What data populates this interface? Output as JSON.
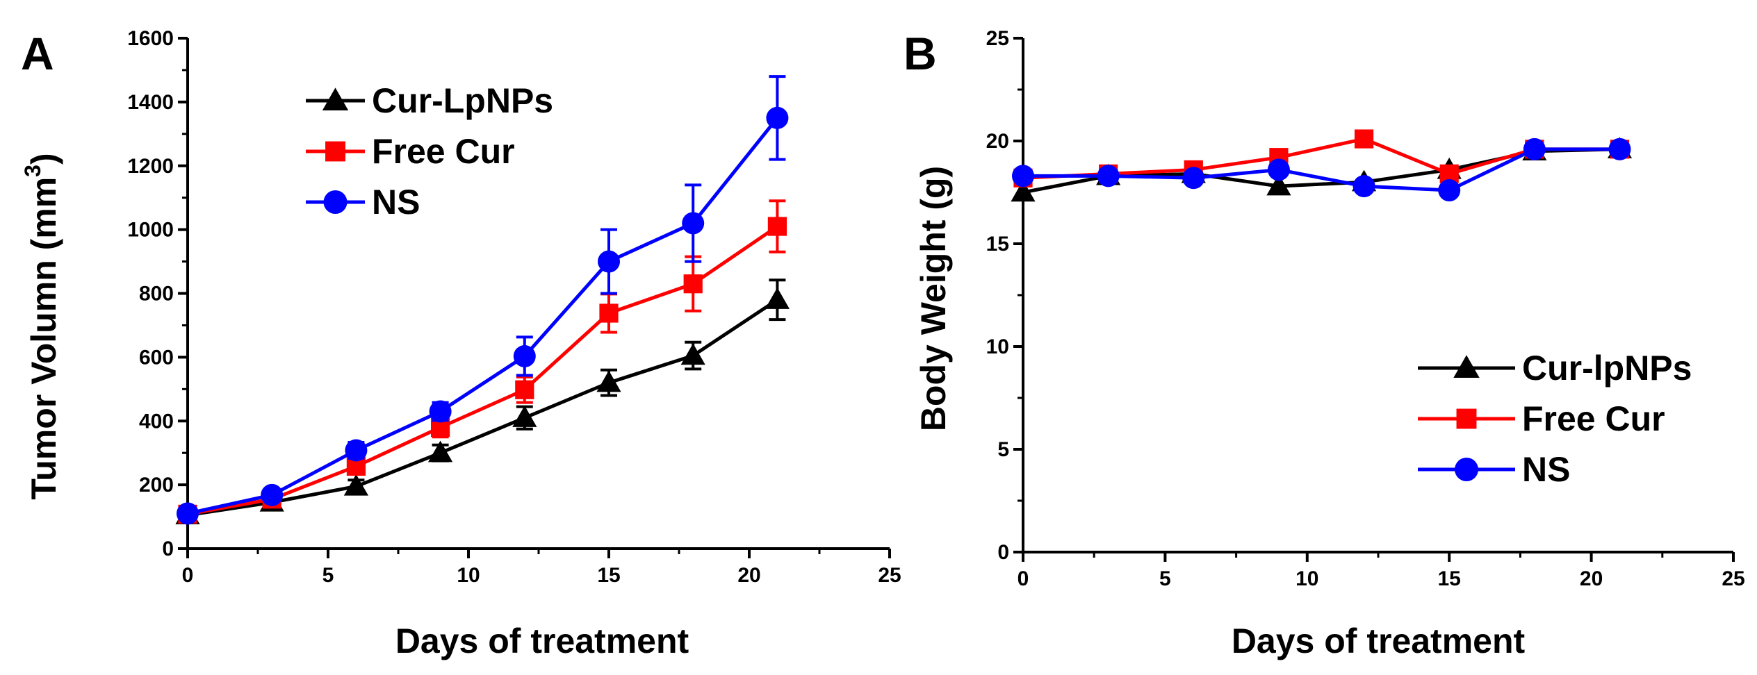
{
  "chart_data": [
    {
      "type": "line",
      "panel_label": "A",
      "xlabel": "Days of treatment",
      "ylabel": "Tumor Volumn (mm",
      "ylabel_superscript": "3",
      "ylabel_close": ")",
      "xlim": [
        0,
        25
      ],
      "ylim": [
        0,
        1600
      ],
      "x_ticks": [
        "0",
        "5",
        "10",
        "15",
        "20",
        "25"
      ],
      "y_ticks": [
        "0",
        "200",
        "400",
        "600",
        "800",
        "1000",
        "1200",
        "1400",
        "1600"
      ],
      "legend_position": "top-left",
      "x": [
        0,
        3,
        6,
        9,
        12,
        15,
        18,
        21
      ],
      "series": [
        {
          "name": "Cur-LpNPs",
          "color": "#000000",
          "marker": "triangle",
          "values": [
            105,
            145,
            195,
            300,
            410,
            520,
            605,
            780
          ],
          "errors": [
            10,
            15,
            20,
            25,
            35,
            40,
            42,
            62
          ]
        },
        {
          "name": "Free Cur",
          "color": "#ff0000",
          "marker": "square",
          "values": [
            108,
            155,
            258,
            380,
            498,
            738,
            830,
            1010
          ],
          "errors": [
            10,
            15,
            25,
            30,
            40,
            60,
            85,
            80
          ]
        },
        {
          "name": "NS",
          "color": "#0000ff",
          "marker": "circle",
          "values": [
            110,
            168,
            308,
            430,
            603,
            900,
            1020,
            1350
          ],
          "errors": [
            10,
            15,
            25,
            28,
            60,
            100,
            120,
            130
          ]
        }
      ]
    },
    {
      "type": "line",
      "panel_label": "B",
      "xlabel": "Days of treatment",
      "ylabel": "Body Weight (g)",
      "xlim": [
        0,
        25
      ],
      "ylim": [
        0,
        25
      ],
      "x_ticks": [
        "0",
        "5",
        "10",
        "15",
        "20",
        "25"
      ],
      "y_ticks": [
        "0",
        "5",
        "10",
        "15",
        "20",
        "25"
      ],
      "legend_position": "bottom-right",
      "x": [
        0,
        3,
        6,
        9,
        12,
        15,
        18,
        21
      ],
      "series": [
        {
          "name": "Cur-lpNPs",
          "color": "#000000",
          "marker": "triangle",
          "values": [
            17.5,
            18.3,
            18.4,
            17.8,
            18.0,
            18.6,
            19.5,
            19.6
          ]
        },
        {
          "name": "Free Cur",
          "color": "#ff0000",
          "marker": "square",
          "values": [
            18.2,
            18.4,
            18.6,
            19.2,
            20.1,
            18.4,
            19.6,
            19.6
          ]
        },
        {
          "name": "NS",
          "color": "#0000ff",
          "marker": "circle",
          "values": [
            18.3,
            18.3,
            18.2,
            18.6,
            17.8,
            17.6,
            19.6,
            19.6
          ]
        }
      ]
    }
  ]
}
